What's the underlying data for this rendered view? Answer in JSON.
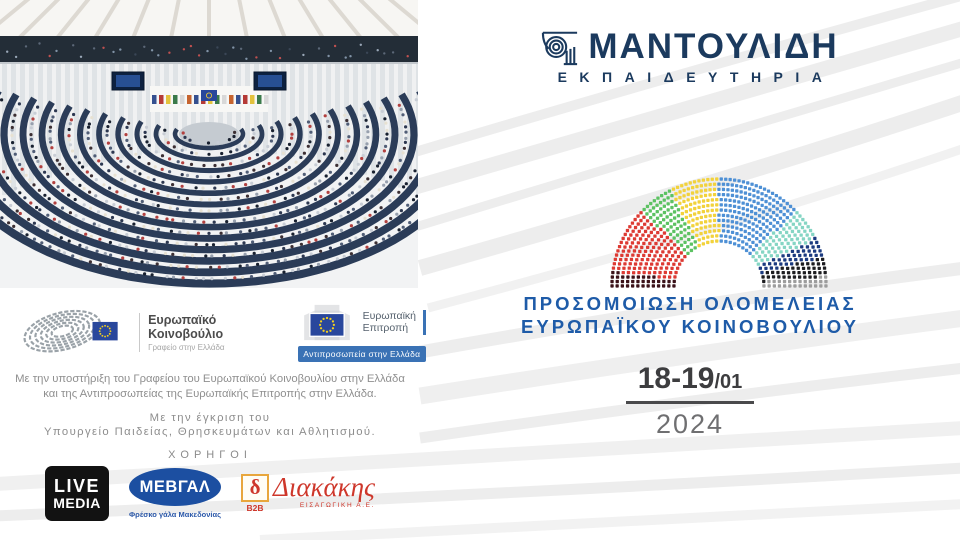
{
  "background": {
    "stripe_color": "#ededed"
  },
  "brand": {
    "name": "ΜΑΝΤΟΥΛΙΔΗ",
    "subtitle": "ΕΚΠΑΙΔΕΥΤΗΡΙΑ",
    "color": "#1b3a5e"
  },
  "title": {
    "line1": "ΠΡΟΣΟΜΟΙΩΣΗ ΟΛΟΜΕΛΕΙΑΣ",
    "line2": "ΕΥΡΩΠΑΪΚΟΥ ΚΟΙΝΟΒΟΥΛΙΟΥ",
    "color": "#1e5ba8"
  },
  "date": {
    "days": "18-19",
    "month": "/01",
    "year": "2024"
  },
  "partners": {
    "ep": {
      "name": "Ευρωπαϊκό Κοινοβούλιο",
      "office": "Γραφείο στην Ελλάδα"
    },
    "ec": {
      "name_line1": "Ευρωπαϊκή",
      "name_line2": "Επιτροπή",
      "banner": "Αντιπροσωπεία στην Ελλάδα",
      "banner_color": "#3a72b5"
    }
  },
  "support": {
    "line1": "Με την υποστήριξη του Γραφείου του Ευρωπαϊκού Κοινοβουλίου στην Ελλάδα",
    "line2": "και της Αντιπροσωπείας της Ευρωπαϊκής Επιτροπής στην Ελλάδα."
  },
  "approval": {
    "line1": "Με την έγκριση του",
    "line2": "Υπουργείο Παιδείας, Θρησκευμάτων και Αθλητισμού."
  },
  "sponsors": {
    "heading": "ΧΟΡΗΓΟΙ",
    "live_media": {
      "line1": "LIVE",
      "line2": "MEDIA"
    },
    "mevgal": {
      "name": "ΜΕΒΓΑΛ",
      "tagline": "Φρέσκο γάλα Μακεδονίας",
      "color": "#1c4fa1"
    },
    "diakakis": {
      "initial": "δ",
      "b2b": "B2B",
      "name": "Διακάκης",
      "subtitle": "ΕΙΣΑΓΩΓΙΚΗ Α.Ε.",
      "color": "#ce372b"
    }
  },
  "chart_data": {
    "type": "parliament-hemicycle",
    "total_seats": 705,
    "rows": 13,
    "legend": "none",
    "groups": [
      {
        "name": "dark-red",
        "seats": 37,
        "color": "#3b1219"
      },
      {
        "name": "red",
        "seats": 140,
        "color": "#dd3a33"
      },
      {
        "name": "green",
        "seats": 72,
        "color": "#5cc262"
      },
      {
        "name": "yellow",
        "seats": 102,
        "color": "#f2d23b"
      },
      {
        "name": "blue",
        "seats": 178,
        "color": "#4e90d5"
      },
      {
        "name": "teal",
        "seats": 68,
        "color": "#85d5c4"
      },
      {
        "name": "navy",
        "seats": 40,
        "color": "#1c3b80"
      },
      {
        "name": "black",
        "seats": 41,
        "color": "#1d1d20"
      },
      {
        "name": "grey",
        "seats": 27,
        "color": "#9d9d9d"
      }
    ]
  }
}
